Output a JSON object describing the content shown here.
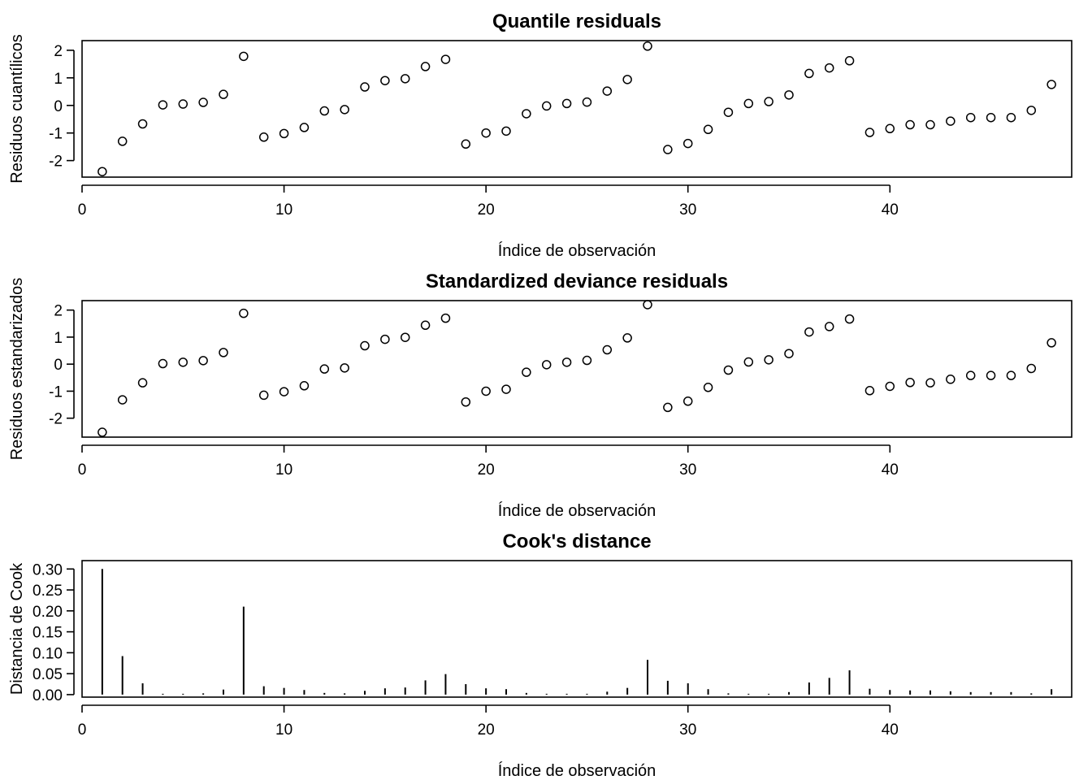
{
  "chart_data": [
    {
      "type": "scatter",
      "title": "Quantile residuals",
      "xlabel": "Índice de observación",
      "ylabel": "Residuos cuantílicos",
      "xlim": [
        0,
        49
      ],
      "ylim": [
        -2.6,
        2.35
      ],
      "xticks": [
        0,
        10,
        20,
        30,
        40
      ],
      "yticks": [
        -2,
        -1,
        0,
        1,
        2
      ],
      "x": [
        1,
        2,
        3,
        4,
        5,
        6,
        7,
        8,
        9,
        10,
        11,
        12,
        13,
        14,
        15,
        16,
        17,
        18,
        19,
        20,
        21,
        22,
        23,
        24,
        25,
        26,
        27,
        28,
        29,
        30,
        31,
        32,
        33,
        34,
        35,
        36,
        37,
        38,
        39,
        40,
        41,
        42,
        43,
        44,
        45,
        46,
        47,
        48
      ],
      "values": [
        -2.4,
        -1.3,
        -0.67,
        0.02,
        0.05,
        0.11,
        0.4,
        1.78,
        -1.15,
        -1.02,
        -0.8,
        -0.2,
        -0.15,
        0.67,
        0.9,
        0.97,
        1.41,
        1.67,
        -1.4,
        -1.0,
        -0.93,
        -0.3,
        -0.02,
        0.07,
        0.12,
        0.52,
        0.94,
        2.15,
        -1.6,
        -1.38,
        -0.87,
        -0.25,
        0.07,
        0.14,
        0.38,
        1.16,
        1.36,
        1.62,
        -0.98,
        -0.84,
        -0.7,
        -0.7,
        -0.57,
        -0.44,
        -0.44,
        -0.44,
        -0.18,
        0.76
      ]
    },
    {
      "type": "scatter",
      "title": "Standardized deviance residuals",
      "xlabel": "Índice de observación",
      "ylabel": "Residuos estandarizados",
      "xlim": [
        0,
        49
      ],
      "ylim": [
        -2.7,
        2.35
      ],
      "xticks": [
        0,
        10,
        20,
        30,
        40
      ],
      "yticks": [
        -2,
        -1,
        0,
        1,
        2
      ],
      "x": [
        1,
        2,
        3,
        4,
        5,
        6,
        7,
        8,
        9,
        10,
        11,
        12,
        13,
        14,
        15,
        16,
        17,
        18,
        19,
        20,
        21,
        22,
        23,
        24,
        25,
        26,
        27,
        28,
        29,
        30,
        31,
        32,
        33,
        34,
        35,
        36,
        37,
        38,
        39,
        40,
        41,
        42,
        43,
        44,
        45,
        46,
        47,
        48
      ],
      "values": [
        -2.52,
        -1.32,
        -0.69,
        0.02,
        0.07,
        0.13,
        0.43,
        1.88,
        -1.15,
        -1.02,
        -0.8,
        -0.18,
        -0.14,
        0.68,
        0.92,
        0.99,
        1.44,
        1.7,
        -1.4,
        -1.0,
        -0.93,
        -0.3,
        -0.02,
        0.07,
        0.14,
        0.53,
        0.97,
        2.2,
        -1.6,
        -1.37,
        -0.86,
        -0.22,
        0.08,
        0.16,
        0.39,
        1.19,
        1.39,
        1.67,
        -0.98,
        -0.82,
        -0.68,
        -0.69,
        -0.56,
        -0.42,
        -0.42,
        -0.42,
        -0.16,
        0.79
      ]
    },
    {
      "type": "bar",
      "title": "Cook's distance",
      "xlabel": "Índice de observación",
      "ylabel": "Distancia de Cook",
      "xlim": [
        0,
        49
      ],
      "ylim": [
        -0.006,
        0.32
      ],
      "xticks": [
        0,
        10,
        20,
        30,
        40
      ],
      "yticks": [
        0.0,
        0.05,
        0.1,
        0.15,
        0.2,
        0.25,
        0.3
      ],
      "ytick_labels": [
        "0.00",
        "0.05",
        "0.10",
        "0.15",
        "0.20",
        "0.25",
        "0.30"
      ],
      "x": [
        1,
        2,
        3,
        4,
        5,
        6,
        7,
        8,
        9,
        10,
        11,
        12,
        13,
        14,
        15,
        16,
        17,
        18,
        19,
        20,
        21,
        22,
        23,
        24,
        25,
        26,
        27,
        28,
        29,
        30,
        31,
        32,
        33,
        34,
        35,
        36,
        37,
        38,
        39,
        40,
        41,
        42,
        43,
        44,
        45,
        46,
        47,
        48
      ],
      "values": [
        0.3,
        0.092,
        0.027,
        0.002,
        0.002,
        0.003,
        0.012,
        0.21,
        0.02,
        0.016,
        0.011,
        0.004,
        0.003,
        0.009,
        0.015,
        0.017,
        0.034,
        0.049,
        0.025,
        0.015,
        0.013,
        0.004,
        0.002,
        0.002,
        0.002,
        0.007,
        0.016,
        0.083,
        0.033,
        0.027,
        0.013,
        0.003,
        0.002,
        0.002,
        0.006,
        0.029,
        0.04,
        0.058,
        0.014,
        0.011,
        0.01,
        0.01,
        0.008,
        0.006,
        0.006,
        0.006,
        0.003,
        0.013
      ]
    }
  ]
}
